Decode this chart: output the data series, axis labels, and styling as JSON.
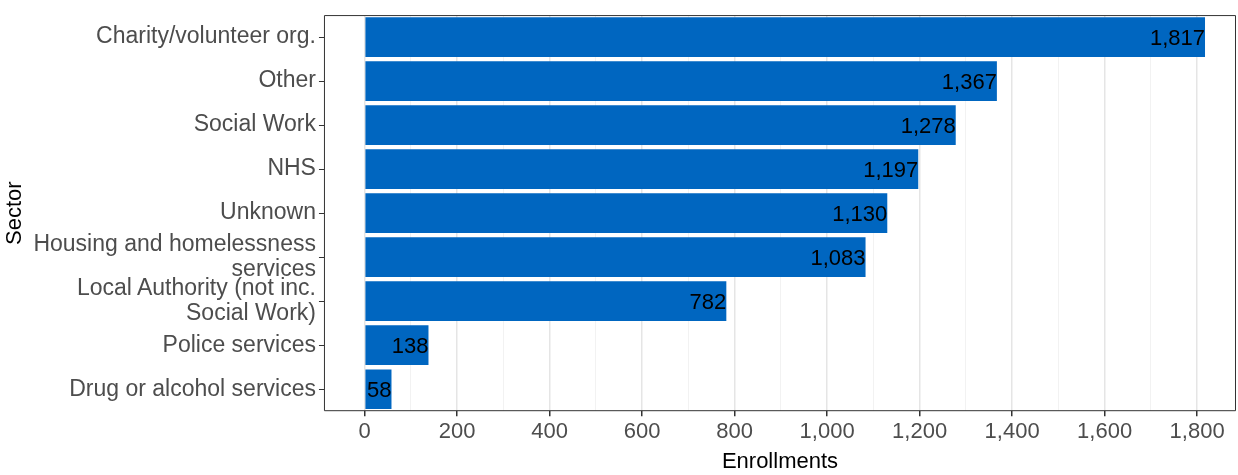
{
  "chart_data": {
    "type": "bar",
    "orientation": "horizontal",
    "xlabel": "Enrollments",
    "ylabel": "Sector",
    "categories": [
      "Charity/volunteer org.",
      "Other",
      "Social Work",
      "NHS",
      "Unknown",
      "Housing and homelessness services",
      "Local Authority (not inc. Social Work)",
      "Police services",
      "Drug or alcohol services"
    ],
    "values": [
      1817,
      1367,
      1278,
      1197,
      1130,
      1083,
      782,
      138,
      58
    ],
    "color": "#0066c0",
    "xlim": [
      -88,
      1884
    ],
    "xticks": [
      0,
      {
        "value": 100,
        "label": null
      },
      200,
      {
        "value": 300,
        "label": null
      },
      400,
      {
        "value": 500,
        "label": null
      },
      600,
      {
        "value": 700,
        "label": null
      },
      800,
      {
        "value": 900,
        "label": null
      },
      {
        "value": 1000,
        "label": "1,000"
      },
      {
        "value": 1100,
        "label": null
      },
      {
        "value": 1200,
        "label": "1,200"
      },
      {
        "value": 1300,
        "label": null
      },
      {
        "value": 1400,
        "label": "1,400"
      },
      {
        "value": 1500,
        "label": null
      },
      {
        "value": 1600,
        "label": "1,600"
      },
      {
        "value": 1700,
        "label": null
      },
      {
        "value": 1800,
        "label": "1,800"
      }
    ],
    "value_labels": [
      "1,817",
      "1,367",
      "1,278",
      "1,197",
      "1,130",
      "1,083",
      "782",
      "138",
      "58"
    ],
    "grid": true,
    "legend": false
  }
}
